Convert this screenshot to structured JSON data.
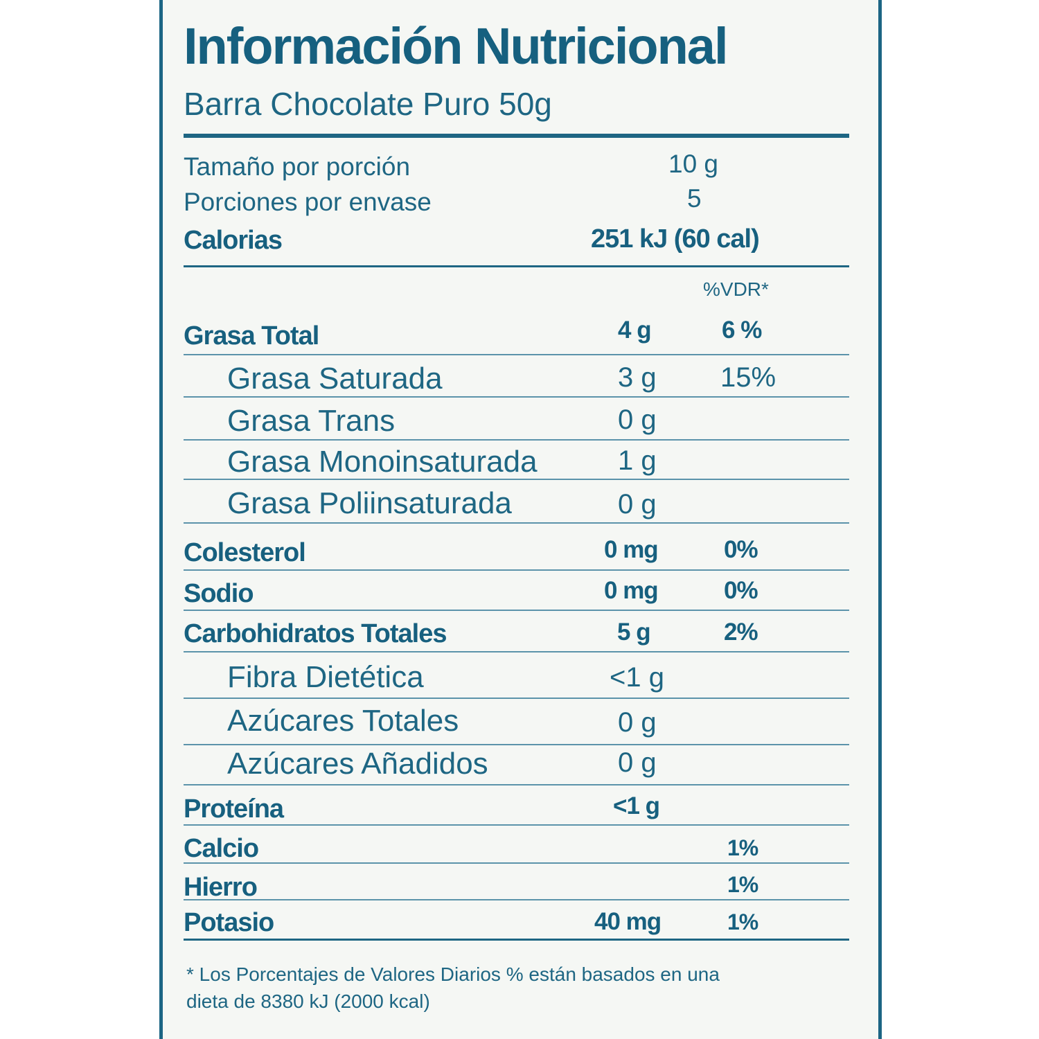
{
  "title": "Información Nutricional",
  "subtitle": "Barra Chocolate Puro 50g",
  "serving": {
    "size_label": "Tamaño por porción",
    "size_value": "10 g",
    "servings_label": "Porciones por envase",
    "servings_value": "5",
    "calories_label": "Calorias",
    "calories_value": "251 kJ (60 cal)"
  },
  "vdr_header": "%VDR*",
  "nutrients": {
    "grasa_total": {
      "label": "Grasa Total",
      "amount": "4 g",
      "vdr": "6 %"
    },
    "grasa_saturada": {
      "label": "Grasa Saturada",
      "amount": "3 g",
      "vdr": "15%"
    },
    "grasa_trans": {
      "label": "Grasa Trans",
      "amount": "0 g"
    },
    "grasa_mono": {
      "label": "Grasa Monoinsaturada",
      "amount": "1 g"
    },
    "grasa_poli": {
      "label": "Grasa Poliinsaturada",
      "amount": "0 g"
    },
    "colesterol": {
      "label": "Colesterol",
      "amount": "0 mg",
      "vdr": "0%"
    },
    "sodio": {
      "label": "Sodio",
      "amount": "0 mg",
      "vdr": "0%"
    },
    "carbohidratos": {
      "label": "Carbohidratos Totales",
      "amount": "5 g",
      "vdr": "2%"
    },
    "fibra": {
      "label": "Fibra Dietética",
      "amount": "<1 g"
    },
    "azucares_totales": {
      "label": "Azúcares Totales",
      "amount": "0 g"
    },
    "azucares_anadidos": {
      "label": "Azúcares Añadidos",
      "amount": "0 g"
    },
    "proteina": {
      "label": "Proteína",
      "amount": "<1 g"
    },
    "calcio": {
      "label": "Calcio",
      "vdr": "1%"
    },
    "hierro": {
      "label": "Hierro",
      "vdr": "1%"
    },
    "potasio": {
      "label": "Potasio",
      "amount": "40 mg",
      "vdr": "1%"
    }
  },
  "footnote": {
    "line1": "* Los Porcentajes de Valores Diarios % están basados en una",
    "line2": "dieta de 8380 kJ (2000  kcal)"
  },
  "colors": {
    "ink": "#1e6683",
    "background": "#f5f7f4"
  }
}
